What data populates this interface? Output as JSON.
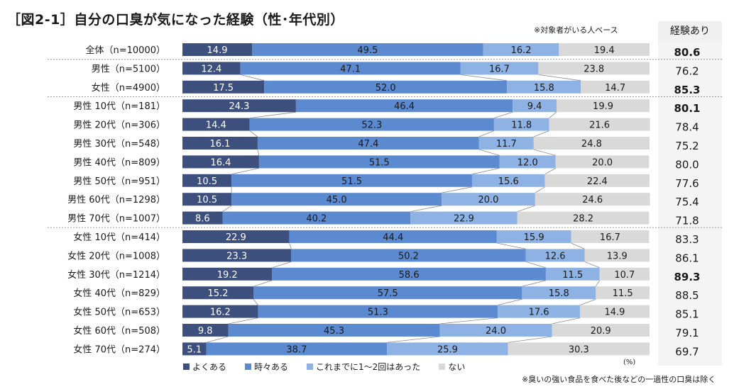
{
  "title": "［図2-1］自分の口臭が気になった経験（性･年代別）",
  "note_top": "※対象者がいる人ベース",
  "note_bottom": "※臭いの強い食品を食べた後などの一過性の口臭は除く",
  "unit": "(%)",
  "total_header": "経験あり",
  "colors": [
    "#3d4f7c",
    "#5b8ad0",
    "#8db2e3",
    "#d9d9d9"
  ],
  "chart_data": {
    "type": "bar",
    "orientation": "horizontal",
    "stacked": true,
    "normalized": true,
    "title": "［図2-1］自分の口臭が気になった経験（性･年代別）",
    "unit": "(%)",
    "legend_position": "bottom",
    "categories": [
      "全体（n=10000）",
      "男性（n=5100）",
      "女性（n=4900）",
      "男性 10代（n=181）",
      "男性 20代（n=306）",
      "男性 30代（n=548）",
      "男性 40代（n=809）",
      "男性 50代（n=951）",
      "男性 60代（n=1298）",
      "男性 70代（n=1007）",
      "女性 10代（n=414）",
      "女性 20代（n=1008）",
      "女性 30代（n=1214）",
      "女性 40代（n=829）",
      "女性 50代（n=653）",
      "女性 60代（n=508）",
      "女性 70代（n=274）"
    ],
    "series": [
      {
        "name": "よくある",
        "values": [
          14.9,
          12.4,
          17.5,
          24.3,
          14.4,
          16.1,
          16.4,
          10.5,
          10.5,
          8.6,
          22.9,
          23.3,
          19.2,
          15.2,
          16.2,
          9.8,
          5.1
        ]
      },
      {
        "name": "時々ある",
        "values": [
          49.5,
          47.1,
          52.0,
          46.4,
          52.3,
          47.4,
          51.5,
          51.5,
          45.0,
          40.2,
          44.4,
          50.2,
          58.6,
          57.5,
          51.3,
          45.3,
          38.7
        ]
      },
      {
        "name": "これまでに1～2回はあった",
        "values": [
          16.2,
          16.7,
          15.8,
          9.4,
          11.8,
          11.7,
          12.0,
          15.6,
          20.0,
          22.9,
          15.9,
          12.6,
          11.5,
          15.8,
          17.6,
          24.0,
          25.9
        ]
      },
      {
        "name": "ない",
        "values": [
          19.4,
          23.8,
          14.7,
          19.9,
          21.6,
          24.8,
          20.0,
          22.4,
          24.6,
          28.2,
          16.7,
          13.9,
          10.7,
          11.5,
          14.9,
          20.9,
          30.3
        ]
      }
    ],
    "totals": {
      "label": "経験あり",
      "values": [
        "80.6",
        "76.2",
        "85.3",
        "80.1",
        "78.4",
        "75.2",
        "80.0",
        "77.6",
        "75.4",
        "71.8",
        "83.3",
        "86.1",
        "89.3",
        "88.5",
        "85.1",
        "79.1",
        "69.7"
      ],
      "bold": [
        true,
        false,
        true,
        true,
        false,
        false,
        false,
        false,
        false,
        false,
        false,
        false,
        true,
        false,
        false,
        false,
        false
      ]
    },
    "xlim": [
      0,
      100
    ]
  }
}
